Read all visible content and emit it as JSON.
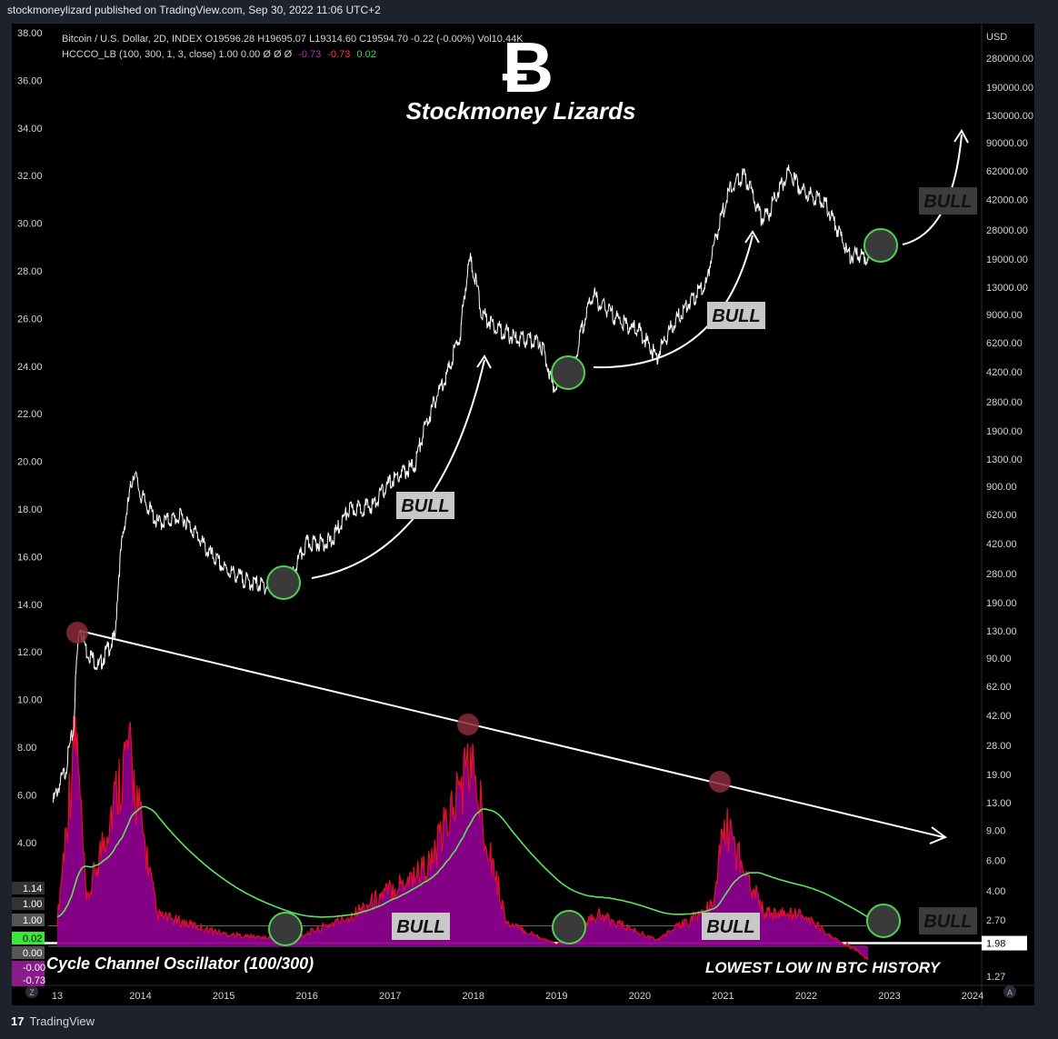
{
  "attribution": "stockmoneylizard published on TradingView.com, Sep 30, 2022 11:06 UTC+2",
  "legend": {
    "symbol_line": "Bitcoin / U.S. Dollar, 2D, INDEX  O19596.28  H19695.07  L19314.60  C19594.70  -0.22 (-0.00%)  Vol10.44K",
    "indicator_line_prefix": "HCCCO_LB (100, 300, 1, 3, close)  1.00  0.00  Ø  Ø  Ø",
    "indicator_val_1": "-0.73",
    "indicator_val_2": "-0.73",
    "indicator_val_3": "0.02"
  },
  "brand": {
    "logo_glyph": "Ƀ",
    "title": "Stockmoney Lizards"
  },
  "colors": {
    "background": "#000000",
    "frame": "#1e222d",
    "price_line": "#ffffff",
    "oscillator_fill": "#8b008b",
    "oscillator_line": "#e0102a",
    "signal_line": "#5ee25e",
    "bull_circle_fill": "#3a3a3a",
    "bull_circle_stroke": "#4cd44c",
    "peak_circle": "#8a2a3a",
    "label_bg_light": "#c8c8c8",
    "label_bg_dark": "#3c3c3c"
  },
  "annotations": {
    "bull_labels": [
      "BULL",
      "BULL",
      "BULL",
      "BULL",
      "BULL",
      "BULL",
      "BULL"
    ],
    "oscillator_title": "Cycle Channel Oscillator (100/300)",
    "lowest_low": "LOWEST LOW IN BTC HISTORY"
  },
  "chart_data": {
    "type": "line",
    "title": "Bitcoin / U.S. Dollar, 2D, INDEX",
    "x_ticks": [
      "13",
      "2014",
      "2015",
      "2016",
      "2017",
      "2018",
      "2019",
      "2020",
      "2021",
      "2022",
      "2023",
      "2024"
    ],
    "left_axis_ticks": [
      "38.00",
      "36.00",
      "34.00",
      "32.00",
      "30.00",
      "28.00",
      "26.00",
      "24.00",
      "22.00",
      "20.00",
      "18.00",
      "16.00",
      "14.00",
      "12.00",
      "10.00",
      "8.00",
      "6.00",
      "4.00"
    ],
    "right_axis_unit": "USD",
    "right_axis_ticks": [
      "280000.00",
      "190000.00",
      "130000.00",
      "90000.00",
      "62000.00",
      "42000.00",
      "28000.00",
      "19000.00",
      "13000.00",
      "9000.00",
      "6200.00",
      "4200.00",
      "2800.00",
      "1900.00",
      "1300.00",
      "900.00",
      "620.00",
      "420.00",
      "280.00",
      "190.00",
      "130.00",
      "90.00",
      "62.00",
      "42.00",
      "28.00",
      "19.00",
      "13.00",
      "9.00",
      "6.00",
      "4.00",
      "2.70",
      "1.98",
      "1.27"
    ],
    "yscale": "log",
    "series": [
      {
        "name": "Bitcoin / U.S. Dollar",
        "x": [
          2012.95,
          2013.1,
          2013.2,
          2013.27,
          2013.35,
          2013.5,
          2013.7,
          2013.85,
          2013.92,
          2014.0,
          2014.2,
          2014.5,
          2014.8,
          2015.0,
          2015.3,
          2015.6,
          2015.8,
          2016.0,
          2016.3,
          2016.5,
          2016.8,
          2017.0,
          2017.3,
          2017.5,
          2017.7,
          2017.85,
          2017.96,
          2018.1,
          2018.3,
          2018.5,
          2018.8,
          2018.95,
          2019.2,
          2019.45,
          2019.5,
          2019.8,
          2020.0,
          2020.2,
          2020.5,
          2020.8,
          2020.95,
          2021.1,
          2021.25,
          2021.45,
          2021.55,
          2021.8,
          2021.95,
          2022.2,
          2022.35,
          2022.5,
          2022.75
        ],
        "values": [
          13,
          20,
          35,
          140,
          100,
          80,
          120,
          700,
          1100,
          800,
          550,
          600,
          380,
          300,
          250,
          230,
          250,
          420,
          430,
          650,
          700,
          950,
          1200,
          2500,
          4200,
          7000,
          19000,
          9000,
          7500,
          6500,
          6300,
          3500,
          4000,
          12000,
          10500,
          8000,
          7200,
          5000,
          9200,
          13500,
          29000,
          50000,
          58000,
          33000,
          35000,
          61000,
          47000,
          42000,
          30000,
          20000,
          19595
        ]
      },
      {
        "name": "HCCCO_LB",
        "x": [
          2013.0,
          2013.22,
          2013.35,
          2013.85,
          2014.2,
          2015.0,
          2015.8,
          2016.5,
          2017.5,
          2017.96,
          2018.4,
          2019.0,
          2019.5,
          2020.2,
          2020.9,
          2021.0,
          2021.5,
          2021.95,
          2022.3,
          2022.75
        ],
        "values": [
          1.2,
          10.5,
          2.0,
          9.5,
          1.5,
          0.6,
          0.3,
          1.4,
          4.0,
          8.9,
          1.1,
          0.1,
          1.5,
          0.3,
          2.0,
          6.0,
          1.6,
          1.5,
          0.5,
          -0.73
        ]
      }
    ],
    "oscillator_levels": [
      {
        "label": "1.14"
      },
      {
        "label": "1.00"
      },
      {
        "label": "1.00"
      },
      {
        "label": "0.02"
      },
      {
        "label": "0.00"
      },
      {
        "label": "-0.00"
      },
      {
        "label": "-0.73"
      }
    ],
    "price_tag": "1.98",
    "axis_icons": [
      "Z",
      "A"
    ]
  },
  "footer": {
    "logo_glyph": "17",
    "brand": "TradingView"
  }
}
